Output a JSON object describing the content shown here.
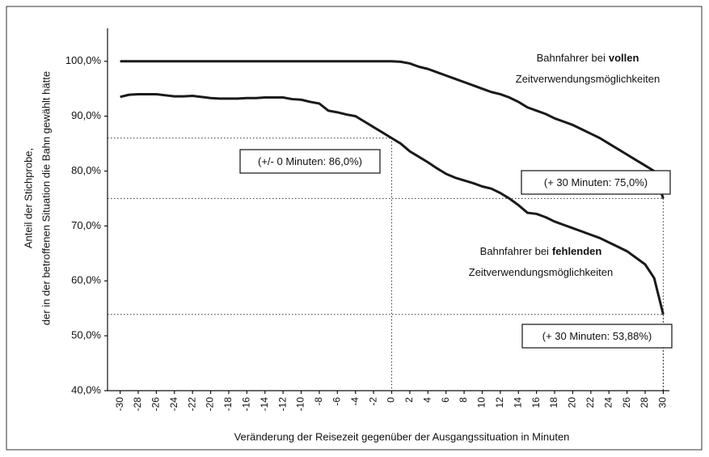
{
  "chart_data": {
    "type": "line",
    "xlabel": "Veränderung der Reisezeit gegenüber der Ausgangssituation in Minuten",
    "ylabel": [
      "Anteil der Stichprobe,",
      "der  in der betroffenen Situation die Bahn gewählt hätte"
    ],
    "x": [
      -30,
      -29,
      -28,
      -27,
      -26,
      -25,
      -24,
      -23,
      -22,
      -21,
      -20,
      -19,
      -18,
      -17,
      -16,
      -15,
      -14,
      -13,
      -12,
      -11,
      -10,
      -9,
      -8,
      -7,
      -6,
      -5,
      -4,
      -3,
      -2,
      -1,
      0,
      1,
      2,
      3,
      4,
      5,
      6,
      7,
      8,
      9,
      10,
      11,
      12,
      13,
      14,
      15,
      16,
      17,
      18,
      19,
      20,
      21,
      22,
      23,
      24,
      25,
      26,
      27,
      28,
      29,
      30
    ],
    "series": [
      {
        "label_lines": [
          [
            "Bahnfahrer bei",
            "vollen"
          ],
          [
            "Zeitverwendungsmöglichkeiten"
          ]
        ],
        "color": "#1a1a1a",
        "values": [
          100,
          100,
          100,
          100,
          100,
          100,
          100,
          100,
          100,
          100,
          100,
          100,
          100,
          100,
          100,
          100,
          100,
          100,
          100,
          100,
          100,
          100,
          100,
          100,
          100,
          100,
          100,
          100,
          100,
          100,
          100,
          99.9,
          99.6,
          99,
          98.6,
          98,
          97.4,
          96.8,
          96.2,
          95.6,
          95,
          94.4,
          94,
          93.4,
          92.6,
          91.6,
          91,
          90.4,
          89.6,
          89,
          88.4,
          87.6,
          86.8,
          86,
          85,
          84,
          83,
          82,
          81,
          80,
          75
        ]
      },
      {
        "label_lines": [
          [
            "Bahnfahrer bei",
            "fehlenden"
          ],
          [
            "Zeitverwendungsmöglichkeiten"
          ]
        ],
        "color": "#1a1a1a",
        "values": [
          93.5,
          93.9,
          94,
          94,
          94,
          93.8,
          93.6,
          93.6,
          93.7,
          93.5,
          93.3,
          93.2,
          93.2,
          93.2,
          93.3,
          93.3,
          93.4,
          93.4,
          93.4,
          93.1,
          93,
          92.6,
          92.3,
          91,
          90.7,
          90.3,
          90,
          89,
          88,
          87,
          86,
          85,
          83.6,
          82.6,
          81.6,
          80.5,
          79.5,
          78.8,
          78.3,
          77.8,
          77.2,
          76.8,
          76,
          75,
          73.8,
          72.4,
          72.2,
          71.6,
          70.8,
          70.2,
          69.6,
          69,
          68.4,
          67.8,
          67,
          66.2,
          65.4,
          64.2,
          63,
          60.5,
          53.88
        ]
      }
    ],
    "annotations": [
      {
        "text": "(+/- 0 Minuten: 86,0%)",
        "x": 0,
        "y": 86
      },
      {
        "text": "(+ 30 Minuten: 75,0%)",
        "x": 30,
        "y": 75
      },
      {
        "text": "(+ 30 Minuten: 53,88%)",
        "x": 30,
        "y": 53.88
      }
    ],
    "xlim": [
      -30.5,
      30.5
    ],
    "xticks": [
      -30,
      -28,
      -26,
      -24,
      -22,
      -20,
      -18,
      -16,
      -14,
      -12,
      -10,
      -8,
      -6,
      -4,
      -2,
      0,
      2,
      4,
      6,
      8,
      10,
      12,
      14,
      16,
      18,
      20,
      22,
      24,
      26,
      28,
      30
    ],
    "ylim": [
      40,
      106
    ],
    "yticks": [
      {
        "value": 40,
        "label": "40,0%"
      },
      {
        "value": 50,
        "label": "50,0%"
      },
      {
        "value": 60,
        "label": "60,0%"
      },
      {
        "value": 70,
        "label": "70,0%"
      },
      {
        "value": 80,
        "label": "80,0%"
      },
      {
        "value": 90,
        "label": "90,0%"
      },
      {
        "value": 100,
        "label": "100,0%"
      }
    ],
    "grid": false
  }
}
